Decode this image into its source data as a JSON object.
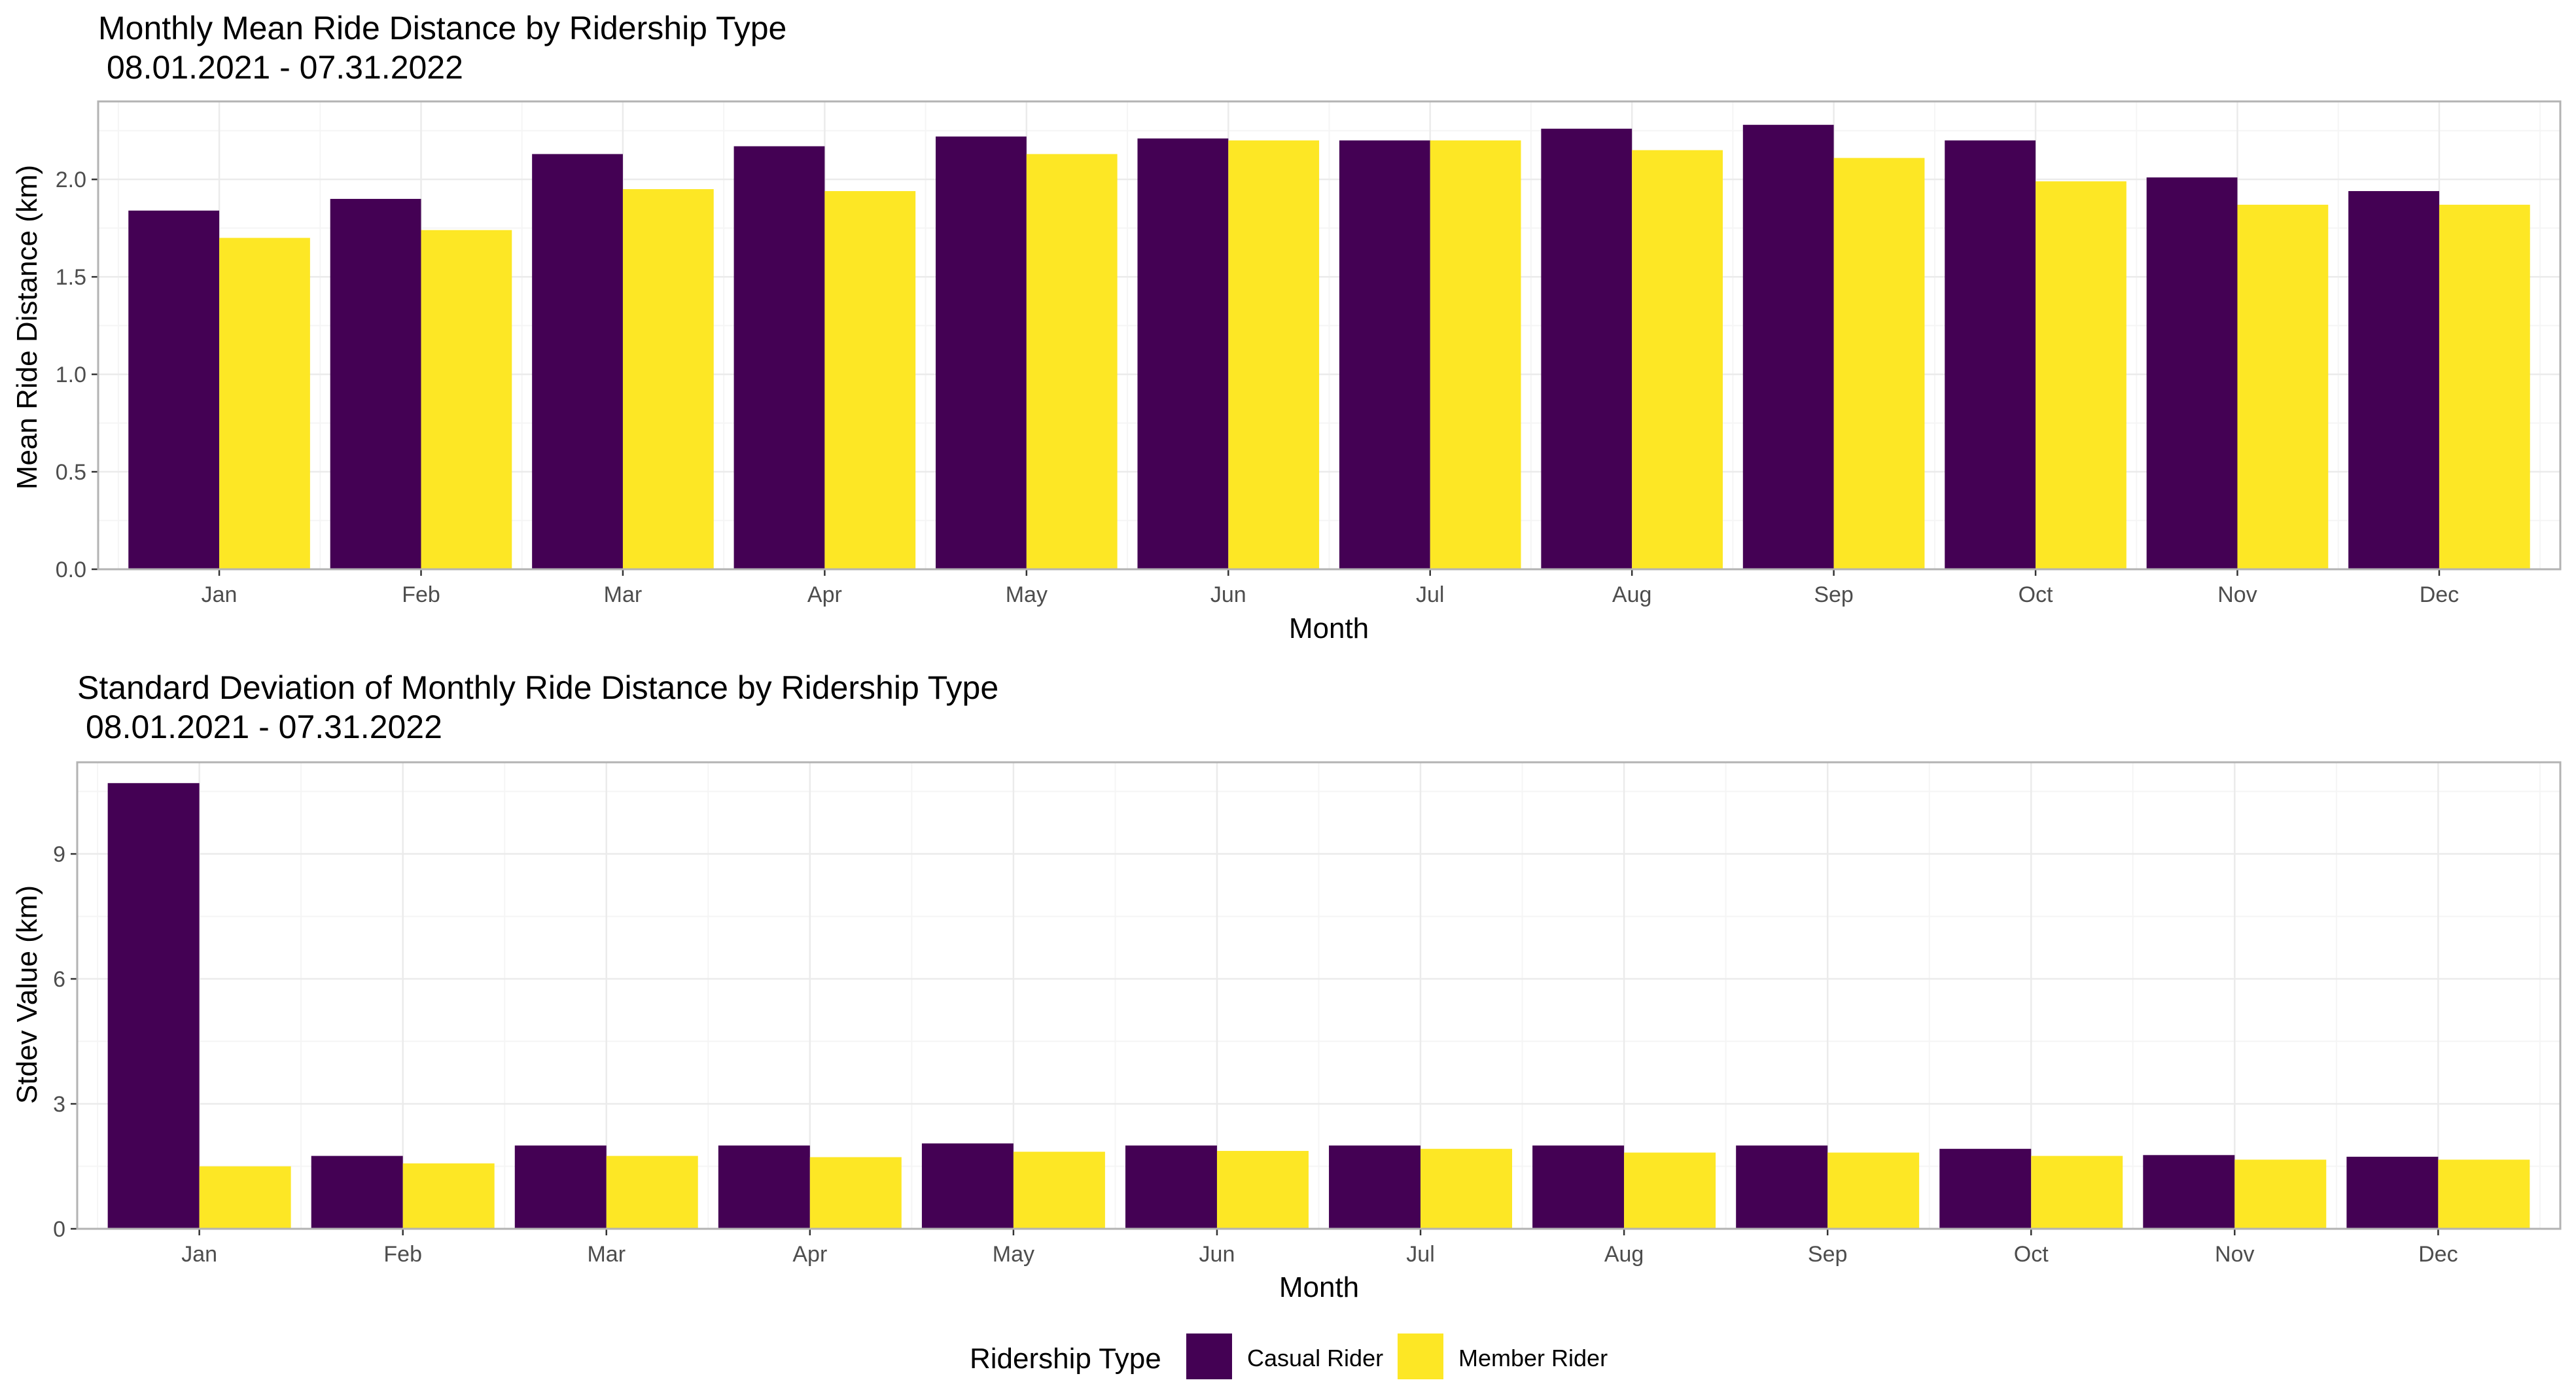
{
  "chart_data": [
    {
      "type": "bar",
      "title": "Monthly Mean Ride Distance by Ridership Type",
      "subtitle": "08.01.2021 - 07.31.2022",
      "xlabel": "Month",
      "ylabel": "Mean Ride Distance (km)",
      "ylim": [
        0,
        2.4
      ],
      "yticks": [
        "0.0",
        "0.5",
        "1.0",
        "1.5",
        "2.0"
      ],
      "categories": [
        "Jan",
        "Feb",
        "Mar",
        "Apr",
        "May",
        "Jun",
        "Jul",
        "Aug",
        "Sep",
        "Oct",
        "Nov",
        "Dec"
      ],
      "series": [
        {
          "name": "Casual Rider",
          "values": [
            1.84,
            1.9,
            2.13,
            2.17,
            2.22,
            2.21,
            2.2,
            2.26,
            2.28,
            2.2,
            2.01,
            1.94
          ]
        },
        {
          "name": "Member Rider",
          "values": [
            1.7,
            1.74,
            1.95,
            1.94,
            2.13,
            2.2,
            2.2,
            2.15,
            2.11,
            1.99,
            1.87,
            1.87
          ]
        }
      ],
      "grid": true
    },
    {
      "type": "bar",
      "title": "Standard Deviation of Monthly Ride Distance by Ridership Type",
      "subtitle": "08.01.2021 - 07.31.2022",
      "xlabel": "Month",
      "ylabel": "Stdev Value (km)",
      "ylim": [
        0,
        11.2
      ],
      "yticks": [
        "0",
        "3",
        "6",
        "9"
      ],
      "categories": [
        "Jan",
        "Feb",
        "Mar",
        "Apr",
        "May",
        "Jun",
        "Jul",
        "Aug",
        "Sep",
        "Oct",
        "Nov",
        "Dec"
      ],
      "series": [
        {
          "name": "Casual Rider",
          "values": [
            10.7,
            1.75,
            2.0,
            2.0,
            2.05,
            2.0,
            2.0,
            2.0,
            2.0,
            1.92,
            1.77,
            1.73
          ]
        },
        {
          "name": "Member Rider",
          "values": [
            1.5,
            1.57,
            1.75,
            1.72,
            1.85,
            1.87,
            1.92,
            1.83,
            1.83,
            1.75,
            1.66,
            1.66
          ]
        }
      ],
      "grid": true
    }
  ],
  "legend": {
    "title": "Ridership Type",
    "placement": "bottom",
    "items": [
      {
        "label": "Casual Rider",
        "color": "#440154"
      },
      {
        "label": "Member Rider",
        "color": "#FDE725"
      }
    ]
  },
  "colors": {
    "casual": "#440154",
    "member": "#FDE725",
    "grid_major": "#ebebeb",
    "grid_minor": "#f5f5f5",
    "panel_border": "#b3b3b3",
    "tick_text": "#4d4d4d"
  }
}
